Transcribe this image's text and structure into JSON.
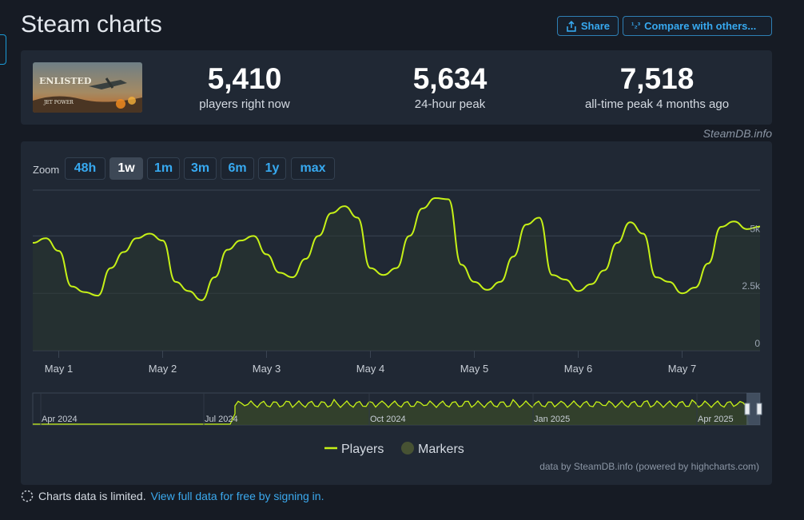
{
  "page": {
    "title": "Steam charts"
  },
  "actions": {
    "share_label": "Share",
    "compare_label": "Compare with others...",
    "compare_icon_text": "¹₂³"
  },
  "stats": [
    {
      "value": "5,410",
      "label": "players right now"
    },
    {
      "value": "5,634",
      "label": "24-hour peak"
    },
    {
      "value": "7,518",
      "label": "all-time peak 4 months ago"
    }
  ],
  "game": {
    "thumbnail_text": "ENLISTED",
    "thumbnail_subtext": "JET POWER"
  },
  "credit": "SteamDB.info",
  "zoom": {
    "label": "Zoom",
    "options": [
      "48h",
      "1w",
      "1m",
      "3m",
      "6m",
      "1y",
      "max"
    ],
    "active": "1w"
  },
  "chart_data": {
    "type": "line",
    "series": [
      {
        "name": "Players",
        "color": "#c6f117",
        "x": [
          "Apr 30 18:00",
          "Apr 30 21:00",
          "May 1 00:00",
          "May 1 03:00",
          "May 1 06:00",
          "May 1 09:00",
          "May 1 12:00",
          "May 1 15:00",
          "May 1 18:00",
          "May 1 21:00",
          "May 2 00:00",
          "May 2 03:00",
          "May 2 06:00",
          "May 2 09:00",
          "May 2 12:00",
          "May 2 15:00",
          "May 2 18:00",
          "May 2 21:00",
          "May 3 00:00",
          "May 3 03:00",
          "May 3 06:00",
          "May 3 09:00",
          "May 3 12:00",
          "May 3 15:00",
          "May 3 18:00",
          "May 3 21:00",
          "May 4 00:00",
          "May 4 03:00",
          "May 4 06:00",
          "May 4 09:00",
          "May 4 12:00",
          "May 4 15:00",
          "May 4 18:00",
          "May 4 21:00",
          "May 5 00:00",
          "May 5 03:00",
          "May 5 06:00",
          "May 5 09:00",
          "May 5 12:00",
          "May 5 15:00",
          "May 5 18:00",
          "May 5 21:00",
          "May 6 00:00",
          "May 6 03:00",
          "May 6 06:00",
          "May 6 09:00",
          "May 6 12:00",
          "May 6 15:00",
          "May 6 18:00",
          "May 6 21:00",
          "May 7 00:00",
          "May 7 03:00",
          "May 7 06:00",
          "May 7 09:00",
          "May 7 12:00",
          "May 7 15:00",
          "May 7 18:00"
        ],
        "values": [
          4700,
          4900,
          4350,
          2800,
          2550,
          2400,
          3600,
          4300,
          4900,
          5100,
          4800,
          3000,
          2600,
          2200,
          3200,
          4400,
          4800,
          5000,
          4200,
          3400,
          3200,
          4000,
          5000,
          6000,
          6300,
          5800,
          3600,
          3300,
          3600,
          5000,
          6200,
          6650,
          6600,
          3750,
          3000,
          2650,
          3000,
          4100,
          5500,
          5800,
          3300,
          3100,
          2600,
          2900,
          3500,
          4700,
          5600,
          5100,
          3200,
          3000,
          2500,
          2750,
          3800,
          5400,
          5634,
          5300,
          5410
        ]
      }
    ],
    "ylim": [
      0,
      7000
    ],
    "yticks": [
      0,
      2500,
      5000
    ],
    "ytick_labels": [
      "0",
      "2.5k",
      "5k"
    ],
    "xticks": [
      "May 1",
      "May 2",
      "May 3",
      "May 4",
      "May 5",
      "May 6",
      "May 7"
    ],
    "grid": true,
    "legend": {
      "position": "bottom",
      "entries": [
        {
          "name": "Players",
          "color": "#c6f117"
        },
        {
          "name": "Markers",
          "color": "#475233"
        }
      ]
    },
    "navigator": {
      "labels": [
        "Apr 2024",
        "Jul 2024",
        "Oct 2024",
        "Jan 2025",
        "Apr 2025"
      ]
    },
    "credits": "data by SteamDB.info (powered by highcharts.com)"
  },
  "footer": {
    "notice": "Charts data is limited.",
    "link_text": "View full data for free by signing in."
  }
}
